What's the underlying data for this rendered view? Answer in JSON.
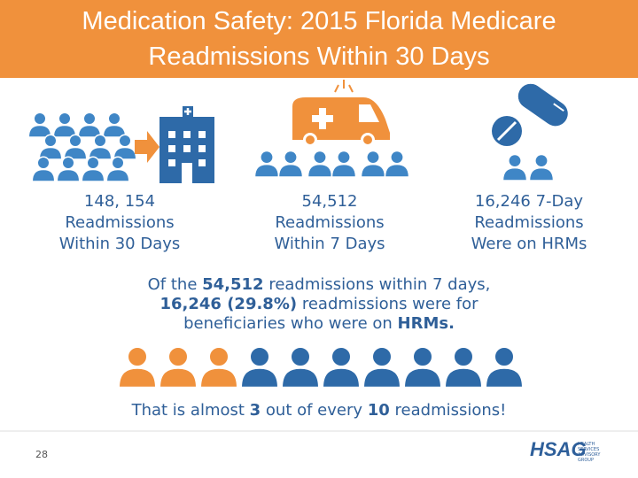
{
  "header": {
    "title_lines": [
      "Medication Safety: 2015 Florida Medicare",
      "Readmissions Within 30 Days"
    ]
  },
  "stats": [
    {
      "lines": [
        "148, 154",
        "Readmissions",
        "Within 30 Days"
      ]
    },
    {
      "lines": [
        "54,512",
        "Readmissions",
        "Within 7 Days"
      ]
    },
    {
      "lines": [
        "16,246 7-Day",
        "Readmissions",
        "Were on HRMs"
      ]
    }
  ],
  "summary": {
    "lines": [
      [
        {
          "text": "Of the ",
          "bold": false
        },
        {
          "text": "54,512",
          "bold": true
        },
        {
          "text": " readmissions within 7 days,",
          "bold": false
        }
      ],
      [
        {
          "text": "16,246 (29.8%)",
          "bold": true
        },
        {
          "text": " readmissions were for",
          "bold": false
        }
      ],
      [
        {
          "text": "beneficiaries who were on ",
          "bold": false
        },
        {
          "text": "HRMs.",
          "bold": true
        }
      ]
    ]
  },
  "closing": {
    "lines": [
      [
        {
          "text": "That is almost ",
          "bold": false
        },
        {
          "text": "3",
          "bold": true
        },
        {
          "text": " out of every ",
          "bold": false
        },
        {
          "text": "10",
          "bold": true
        },
        {
          "text": " readmissions!",
          "bold": false
        }
      ]
    ]
  },
  "footer": {
    "page_number": "28",
    "logo": "HSAG",
    "logo_tagline": "HEALTH SERVICES ADVISORY GROUP"
  }
}
